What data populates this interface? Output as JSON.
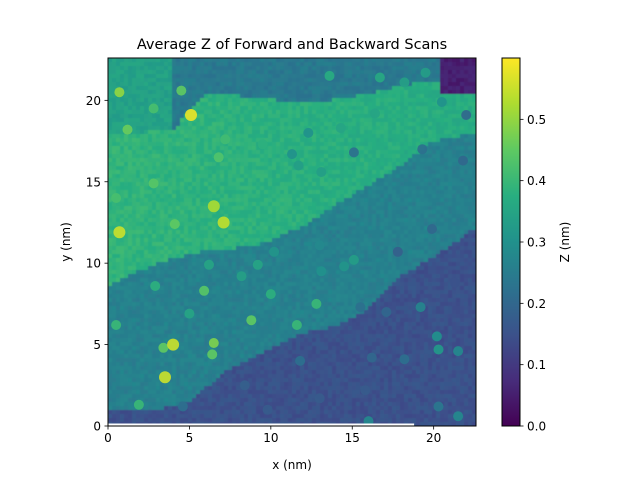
{
  "chart_data": {
    "type": "heatmap",
    "title": "Average Z of Forward and Backward Scans",
    "xlabel": "x (nm)",
    "ylabel": "y (nm)",
    "colorbar_label": "Z (nm)",
    "colormap": "viridis",
    "xlim": [
      0,
      22.6
    ],
    "ylim": [
      0,
      22.6
    ],
    "zlim": [
      0.0,
      0.6
    ],
    "x_ticks": [
      0,
      5,
      10,
      15,
      20
    ],
    "y_ticks": [
      0,
      5,
      10,
      15,
      20
    ],
    "colorbar_ticks": [
      "0.0",
      "0.1",
      "0.2",
      "0.3",
      "0.4",
      "0.5"
    ],
    "grid": false,
    "terraces": [
      {
        "name": "upper",
        "z": 0.39
      },
      {
        "name": "middle",
        "z": 0.26
      },
      {
        "name": "lower",
        "z": 0.15
      }
    ],
    "step_edges": [
      {
        "from": [
          0,
          17.8
        ],
        "to": [
          4,
          18.2
        ],
        "then": [
          [
            6,
            20.4
          ],
          [
            9,
            20.2
          ],
          [
            12,
            19.8
          ],
          [
            15,
            20.2
          ],
          [
            18,
            20.9
          ],
          [
            22.6,
            21.6
          ]
        ]
      },
      {
        "from": [
          0,
          8.6
        ],
        "to": [
          3,
          10.0
        ],
        "then": [
          [
            6,
            10.8
          ],
          [
            9,
            11.0
          ],
          [
            12,
            12.3
          ],
          [
            15,
            14.2
          ],
          [
            18,
            16.0
          ],
          [
            20,
            17.5
          ],
          [
            22.6,
            18.0
          ]
        ]
      },
      {
        "from": [
          0,
          0.9
        ],
        "to": [
          3,
          1.0
        ],
        "then": [
          [
            5,
            1.5
          ],
          [
            7,
            3.2
          ],
          [
            9,
            4.3
          ],
          [
            12,
            5.7
          ],
          [
            14,
            6.1
          ],
          [
            16,
            7.2
          ],
          [
            18,
            9.2
          ],
          [
            21,
            11.0
          ],
          [
            22.6,
            12.2
          ]
        ]
      }
    ],
    "adsorbates": [
      {
        "x": 0.7,
        "y": 20.5,
        "z": 0.5
      },
      {
        "x": 1.2,
        "y": 18.2,
        "z": 0.46
      },
      {
        "x": 5.1,
        "y": 19.1,
        "z": 0.58
      },
      {
        "x": 4.5,
        "y": 20.6,
        "z": 0.45
      },
      {
        "x": 2.8,
        "y": 19.5,
        "z": 0.42
      },
      {
        "x": 11.3,
        "y": 16.7,
        "z": 0.3
      },
      {
        "x": 11.7,
        "y": 16.0,
        "z": 0.33
      },
      {
        "x": 2.8,
        "y": 14.9,
        "z": 0.44
      },
      {
        "x": 6.5,
        "y": 13.5,
        "z": 0.52
      },
      {
        "x": 7.1,
        "y": 12.5,
        "z": 0.54
      },
      {
        "x": 0.7,
        "y": 11.9,
        "z": 0.55
      },
      {
        "x": 4.1,
        "y": 12.4,
        "z": 0.45
      },
      {
        "x": 0.5,
        "y": 14.0,
        "z": 0.42
      },
      {
        "x": 6.8,
        "y": 16.5,
        "z": 0.43
      },
      {
        "x": 7.2,
        "y": 17.6,
        "z": 0.41
      },
      {
        "x": 9.5,
        "y": 17.3,
        "z": 0.38
      },
      {
        "x": 13.1,
        "y": 15.6,
        "z": 0.33
      },
      {
        "x": 12.3,
        "y": 18.0,
        "z": 0.3
      },
      {
        "x": 14.3,
        "y": 18.3,
        "z": 0.35
      },
      {
        "x": 13.6,
        "y": 21.5,
        "z": 0.37
      },
      {
        "x": 16.4,
        "y": 19.2,
        "z": 0.35
      },
      {
        "x": 16.7,
        "y": 21.4,
        "z": 0.36
      },
      {
        "x": 18.2,
        "y": 21.1,
        "z": 0.34
      },
      {
        "x": 19.5,
        "y": 21.7,
        "z": 0.33
      },
      {
        "x": 20.5,
        "y": 19.9,
        "z": 0.3
      },
      {
        "x": 22.0,
        "y": 19.1,
        "z": 0.2
      },
      {
        "x": 19.3,
        "y": 17.0,
        "z": 0.22
      },
      {
        "x": 21.8,
        "y": 16.3,
        "z": 0.2
      },
      {
        "x": 15.1,
        "y": 16.8,
        "z": 0.22
      },
      {
        "x": 19.9,
        "y": 12.1,
        "z": 0.2
      },
      {
        "x": 17.8,
        "y": 10.7,
        "z": 0.18
      },
      {
        "x": 13.0,
        "y": 11.1,
        "z": 0.28
      },
      {
        "x": 13.1,
        "y": 9.5,
        "z": 0.3
      },
      {
        "x": 10.2,
        "y": 10.7,
        "z": 0.31
      },
      {
        "x": 8.2,
        "y": 9.2,
        "z": 0.34
      },
      {
        "x": 9.2,
        "y": 9.9,
        "z": 0.35
      },
      {
        "x": 10.0,
        "y": 8.1,
        "z": 0.38
      },
      {
        "x": 6.2,
        "y": 9.9,
        "z": 0.35
      },
      {
        "x": 2.9,
        "y": 8.6,
        "z": 0.38
      },
      {
        "x": 5.9,
        "y": 8.3,
        "z": 0.44
      },
      {
        "x": 14.5,
        "y": 9.8,
        "z": 0.31
      },
      {
        "x": 15.1,
        "y": 10.2,
        "z": 0.33
      },
      {
        "x": 5.0,
        "y": 6.9,
        "z": 0.35
      },
      {
        "x": 8.8,
        "y": 6.5,
        "z": 0.45
      },
      {
        "x": 11.6,
        "y": 6.2,
        "z": 0.4
      },
      {
        "x": 12.8,
        "y": 7.5,
        "z": 0.4
      },
      {
        "x": 3.4,
        "y": 4.8,
        "z": 0.45
      },
      {
        "x": 4.0,
        "y": 5.0,
        "z": 0.55
      },
      {
        "x": 6.5,
        "y": 5.1,
        "z": 0.48
      },
      {
        "x": 6.4,
        "y": 4.4,
        "z": 0.45
      },
      {
        "x": 3.5,
        "y": 3.0,
        "z": 0.55
      },
      {
        "x": 0.5,
        "y": 6.2,
        "z": 0.4
      },
      {
        "x": 1.9,
        "y": 1.3,
        "z": 0.4
      },
      {
        "x": 15.5,
        "y": 7.3,
        "z": 0.22
      },
      {
        "x": 17.1,
        "y": 7.0,
        "z": 0.2
      },
      {
        "x": 19.2,
        "y": 7.3,
        "z": 0.27
      },
      {
        "x": 20.2,
        "y": 5.5,
        "z": 0.3
      },
      {
        "x": 20.3,
        "y": 4.7,
        "z": 0.32
      },
      {
        "x": 21.5,
        "y": 4.6,
        "z": 0.28
      },
      {
        "x": 18.2,
        "y": 4.1,
        "z": 0.22
      },
      {
        "x": 16.2,
        "y": 4.2,
        "z": 0.2
      },
      {
        "x": 11.8,
        "y": 4.0,
        "z": 0.22
      },
      {
        "x": 8.4,
        "y": 2.5,
        "z": 0.18
      },
      {
        "x": 9.8,
        "y": 1.0,
        "z": 0.17
      },
      {
        "x": 13.0,
        "y": 1.7,
        "z": 0.17
      },
      {
        "x": 15.8,
        "y": 2.2,
        "z": 0.17
      },
      {
        "x": 20.3,
        "y": 1.2,
        "z": 0.24
      },
      {
        "x": 21.5,
        "y": 0.6,
        "z": 0.28
      },
      {
        "x": 16.0,
        "y": 0.3,
        "z": 0.28
      },
      {
        "x": 4.6,
        "y": 1.2,
        "z": 0.22
      },
      {
        "x": 21.3,
        "y": 8.8,
        "z": 0.15
      }
    ]
  }
}
